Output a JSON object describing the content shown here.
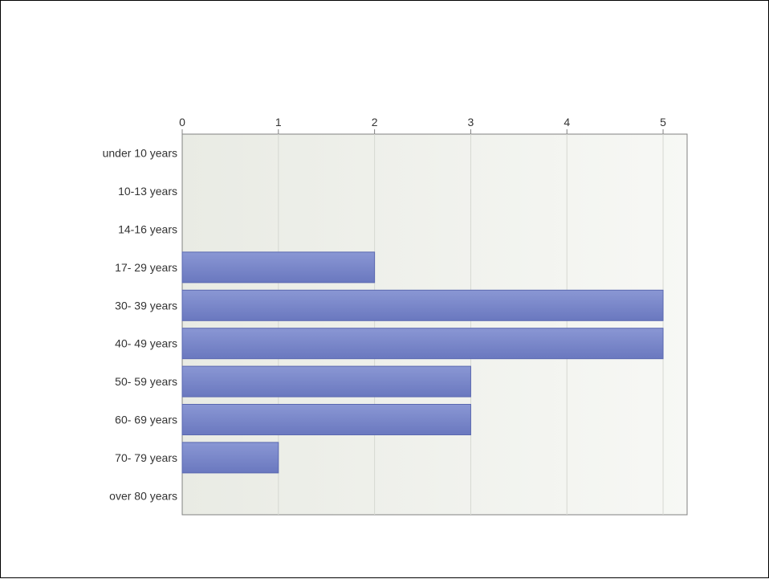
{
  "colors": {
    "bar_top": "#8a97d4",
    "bar_bottom": "#6a78bf",
    "bar_edge": "#5a68b0",
    "plot_bg_left": "#e9ebe4",
    "plot_bg_right": "#f7f8f5",
    "grid": "#d6d8d2",
    "axis": "#808080"
  },
  "chart_data": {
    "type": "bar",
    "orientation": "horizontal",
    "title": "",
    "xlabel": "",
    "ylabel": "",
    "xlim": [
      0,
      5.25
    ],
    "ticks": [
      0,
      1,
      2,
      3,
      4,
      5
    ],
    "tick_labels": [
      "0",
      "1",
      "2",
      "3",
      "4",
      "5"
    ],
    "axis_position": "top",
    "grid": true,
    "categories": [
      "under 10 years",
      "10-13 years",
      "14-16 years",
      "17- 29 years",
      "30- 39 years",
      "40- 49 years",
      "50- 59 years",
      "60- 69 years",
      "70- 79 years",
      "over 80 years"
    ],
    "values": [
      0,
      0,
      0,
      2,
      5,
      5,
      3,
      3,
      1,
      0
    ]
  }
}
